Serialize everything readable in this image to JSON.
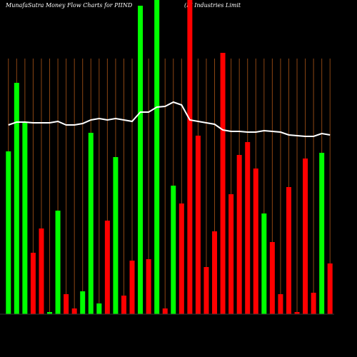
{
  "chart_data": {
    "type": "bar",
    "title": "MunafaSutra  Money Flow  Charts for PIIND",
    "subtitle": "(PI Industries Limit",
    "categories": [
      null,
      null,
      null,
      null,
      null,
      null,
      null,
      null,
      null,
      null,
      null,
      null,
      null,
      null,
      null,
      null,
      null,
      null,
      null,
      null,
      null,
      null,
      null,
      null,
      null,
      null,
      null,
      null,
      null,
      null,
      null,
      null,
      null,
      null,
      null,
      null,
      null,
      null,
      null,
      null
    ],
    "values": [
      228,
      324,
      268,
      86,
      120,
      3,
      145,
      28,
      8,
      32,
      254,
      15,
      131,
      220,
      26,
      75,
      432,
      77,
      440,
      8,
      180,
      155,
      440,
      250,
      66,
      116,
      366,
      168,
      223,
      241,
      204,
      141,
      101,
      28,
      178,
      3,
      218,
      30,
      226,
      71
    ],
    "bar_colors": [
      "#00ff00",
      "#00ff00",
      "#00ff00",
      "#ff0000",
      "#ff0000",
      "#00ff00",
      "#00ff00",
      "#ff0000",
      "#ff0000",
      "#00ff00",
      "#00ff00",
      "#00ff00",
      "#ff0000",
      "#00ff00",
      "#ff0000",
      "#ff0000",
      "#00ff00",
      "#ff0000",
      "#00ff00",
      "#ff0000",
      "#00ff00",
      "#ff0000",
      "#ff0000",
      "#ff0000",
      "#ff0000",
      "#ff0000",
      "#ff0000",
      "#ff0000",
      "#ff0000",
      "#ff0000",
      "#ff0000",
      "#00ff00",
      "#ff0000",
      "#ff0000",
      "#ff0000",
      "#ff0000",
      "#ff0000",
      "#ff0000",
      "#00ff00",
      "#ff0000"
    ],
    "line": {
      "color": "#ffffff",
      "values": [
        265,
        269,
        269,
        268,
        268,
        268,
        270,
        265,
        265,
        267,
        272,
        274,
        272,
        274,
        272,
        270,
        283,
        283,
        290,
        291,
        297,
        293,
        272,
        270,
        268,
        266,
        258,
        256,
        256,
        255,
        255,
        257,
        256,
        255,
        251,
        250,
        249,
        249,
        253,
        251
      ]
    },
    "ylim": [
      0,
      440
    ],
    "grid": true,
    "grid_color": "#8b4513"
  }
}
